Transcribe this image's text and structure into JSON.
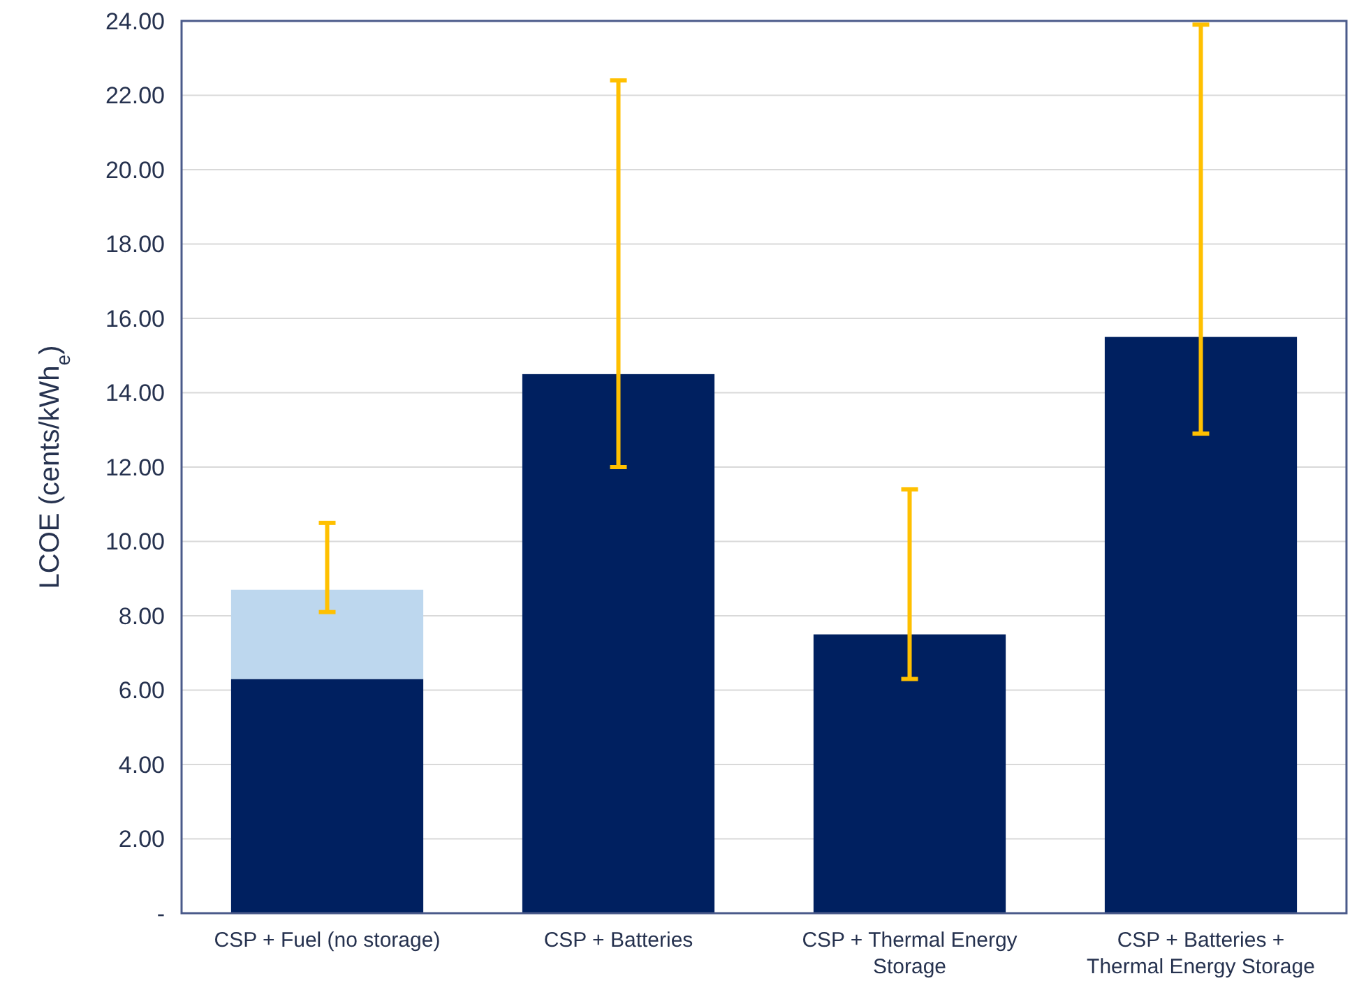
{
  "chart_data": {
    "type": "bar",
    "stacked": true,
    "ylabel": "LCOE (cents/kWh$_{e}$)",
    "categories": [
      "CSP + Fuel (no storage)",
      "CSP + Batteries",
      "CSP + Thermal Energy Storage",
      "CSP + Batteries + Thermal Energy Storage"
    ],
    "series": [
      {
        "color": "#002060",
        "values": [
          6.3,
          14.5,
          7.5,
          15.5
        ],
        "errors": [
          null,
          [
            12.0,
            22.4
          ],
          [
            6.3,
            11.4
          ],
          [
            12.9,
            23.9
          ]
        ]
      },
      {
        "color": "#bdd7ee",
        "values": [
          2.4,
          null,
          null,
          null
        ],
        "errors": [
          [
            8.1,
            10.5
          ],
          null,
          null,
          null
        ]
      }
    ],
    "ylim": [
      0,
      24
    ],
    "yticks": [
      {
        "value": 0,
        "label": "-"
      },
      {
        "value": 2,
        "label": "2.00"
      },
      {
        "value": 4,
        "label": "4.00"
      },
      {
        "value": 6,
        "label": "6.00"
      },
      {
        "value": 8,
        "label": "8.00"
      },
      {
        "value": 10,
        "label": "10.00"
      },
      {
        "value": 12,
        "label": "12.00"
      },
      {
        "value": 14,
        "label": "14.00"
      },
      {
        "value": 16,
        "label": "16.00"
      },
      {
        "value": 18,
        "label": "18.00"
      },
      {
        "value": 20,
        "label": "20.00"
      },
      {
        "value": 22,
        "label": "22.00"
      },
      {
        "value": 24,
        "label": "24.00"
      }
    ],
    "grid": "y"
  }
}
